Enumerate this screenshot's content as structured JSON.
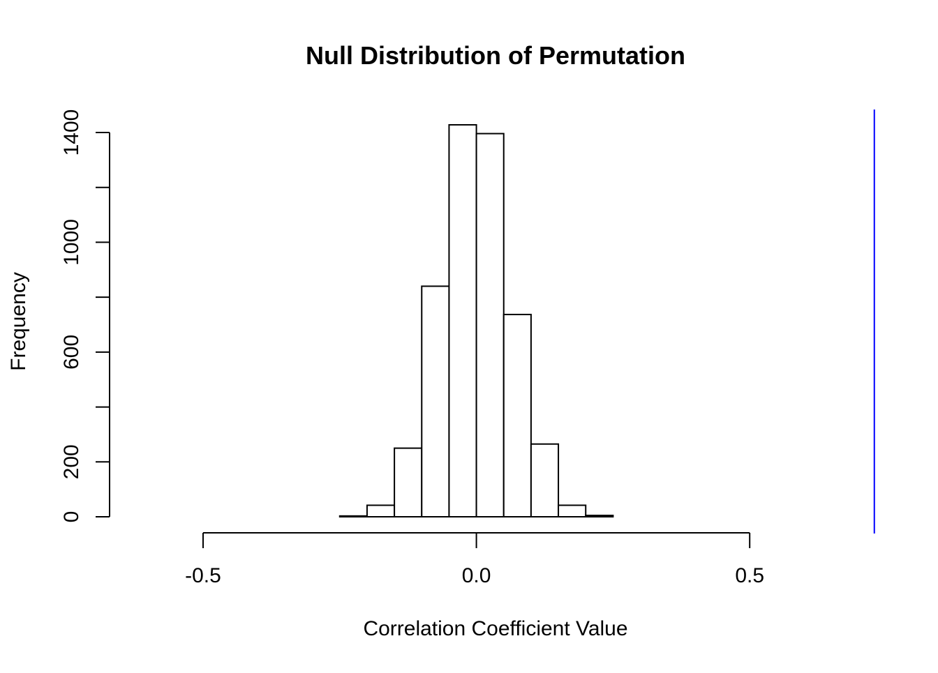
{
  "chart_data": {
    "type": "bar",
    "title": "Null Distribution of Permutation",
    "xlabel": "Correlation Coefficient Value",
    "ylabel": "Frequency",
    "xlim": [
      -0.68,
      0.75
    ],
    "ylim": [
      0,
      1400
    ],
    "x_ticks": [
      -0.5,
      0.0,
      0.5
    ],
    "x_tick_labels": [
      "-0.5",
      "0.0",
      "0.5"
    ],
    "y_ticks": [
      0,
      200,
      400,
      600,
      800,
      1000,
      1200,
      1400
    ],
    "y_tick_labels": [
      "0",
      "200",
      "",
      "600",
      "",
      "1000",
      "",
      "1400"
    ],
    "bin_width": 0.05,
    "bins": [
      {
        "start": -0.25,
        "end": -0.2,
        "count": 3
      },
      {
        "start": -0.2,
        "end": -0.15,
        "count": 42
      },
      {
        "start": -0.15,
        "end": -0.1,
        "count": 250
      },
      {
        "start": -0.1,
        "end": -0.05,
        "count": 840
      },
      {
        "start": -0.05,
        "end": 0.0,
        "count": 1428
      },
      {
        "start": 0.0,
        "end": 0.05,
        "count": 1396
      },
      {
        "start": 0.05,
        "end": 0.1,
        "count": 737
      },
      {
        "start": 0.1,
        "end": 0.15,
        "count": 265
      },
      {
        "start": 0.15,
        "end": 0.2,
        "count": 42
      },
      {
        "start": 0.2,
        "end": 0.25,
        "count": 5
      }
    ],
    "reference_line": {
      "x": 0.728,
      "color": "#0000ff"
    },
    "bar_fill": "#ffffff",
    "bar_stroke": "#000000",
    "grid": false,
    "legend": "none"
  }
}
